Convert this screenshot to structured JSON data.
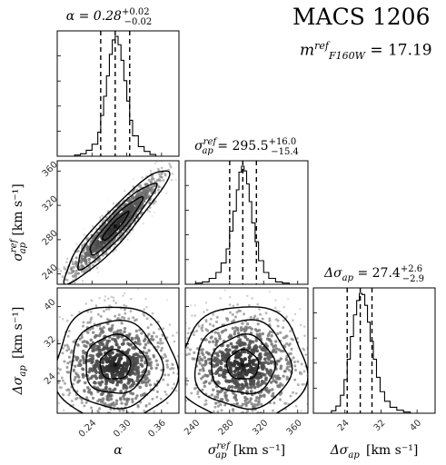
{
  "header": {
    "cluster_name": "MACS 1206",
    "mag_symbol": "m",
    "mag_sup": "ref",
    "mag_sub": "F160W",
    "mag_value": "= 17.19"
  },
  "chart_data": {
    "type": "corner",
    "parameters": [
      {
        "symbol": "α",
        "axis_label": "α",
        "unit": "",
        "title": "α = 0.28",
        "median": 0.28,
        "err_plus": "+0.02",
        "err_minus": "−0.02",
        "quantiles": [
          0.255,
          0.28,
          0.305
        ],
        "range": [
          0.18,
          0.39
        ],
        "ticks": [
          0.24,
          0.3,
          0.36
        ],
        "tick_labels": [
          "0.24",
          "0.30",
          "0.36"
        ]
      },
      {
        "symbol": "σ_ap^ref",
        "axis_label": "σ",
        "axis_sub": "ap",
        "axis_sup": "ref",
        "unit": "[km s⁻¹]",
        "title": "= 295.5",
        "title_symbol": "σ",
        "median": 295.5,
        "err_plus": "+16.0",
        "err_minus": "−15.4",
        "quantiles": [
          280.1,
          295.5,
          311.5
        ],
        "range": [
          228,
          372
        ],
        "ticks": [
          240,
          280,
          320,
          360
        ],
        "tick_labels": [
          "240",
          "280",
          "320",
          "360"
        ]
      },
      {
        "symbol": "Δσ_ap",
        "axis_label": "Δσ",
        "axis_sub": "ap",
        "unit": "[km s⁻¹]",
        "title": "= 27.4",
        "title_symbol": "Δσ",
        "median": 27.4,
        "err_plus": "+2.6",
        "err_minus": "−2.9",
        "quantiles": [
          24.5,
          27.4,
          30.0
        ],
        "range": [
          17,
          44
        ],
        "ticks": [
          24,
          32,
          40
        ],
        "tick_labels": [
          "24",
          "32",
          "40"
        ]
      }
    ],
    "histograms": [
      {
        "param": "α",
        "bin_edges": [
          0.21,
          0.22,
          0.23,
          0.24,
          0.25,
          0.255,
          0.26,
          0.265,
          0.27,
          0.275,
          0.28,
          0.285,
          0.29,
          0.295,
          0.3,
          0.305,
          0.31,
          0.32,
          0.33,
          0.34,
          0.35
        ],
        "counts": [
          0.01,
          0.02,
          0.05,
          0.1,
          0.2,
          0.34,
          0.5,
          0.67,
          0.85,
          0.97,
          1.0,
          0.93,
          0.8,
          0.63,
          0.46,
          0.3,
          0.17,
          0.08,
          0.04,
          0.015
        ]
      },
      {
        "param": "σ_ap^ref",
        "bin_edges": [
          240,
          248,
          256,
          264,
          270,
          276,
          280,
          284,
          288,
          291,
          294,
          297,
          300,
          303,
          306,
          310,
          314,
          320,
          326,
          334,
          342,
          350
        ],
        "counts": [
          0.01,
          0.02,
          0.05,
          0.1,
          0.18,
          0.3,
          0.45,
          0.62,
          0.8,
          0.95,
          1.0,
          0.96,
          0.85,
          0.7,
          0.52,
          0.36,
          0.2,
          0.1,
          0.05,
          0.02,
          0.01
        ]
      },
      {
        "param": "Δσ_ap",
        "bin_edges": [
          21,
          22,
          23,
          23.8,
          24.5,
          25.2,
          25.9,
          26.6,
          27.2,
          27.8,
          28.4,
          29.0,
          29.6,
          30.3,
          31.0,
          31.8,
          32.8,
          34,
          35.5,
          37,
          38.5
        ],
        "counts": [
          0.02,
          0.06,
          0.15,
          0.28,
          0.45,
          0.64,
          0.82,
          0.94,
          1.0,
          0.99,
          0.9,
          0.76,
          0.6,
          0.45,
          0.3,
          0.18,
          0.1,
          0.05,
          0.025,
          0.01
        ]
      }
    ],
    "scatter_2d": [
      {
        "x_param": "α",
        "y_param": "σ_ap^ref",
        "center": [
          0.28,
          295.5
        ],
        "spread": [
          0.03,
          22
        ],
        "correlation": 0.93,
        "contour_levels_sigma": [
          0.5,
          1.0,
          1.5,
          2.0
        ]
      },
      {
        "x_param": "α",
        "y_param": "Δσ_ap",
        "center": [
          0.28,
          27.4
        ],
        "spread": [
          0.035,
          4.2
        ],
        "correlation": 0.0,
        "contour_levels_sigma": [
          0.5,
          1.0,
          1.5,
          2.0
        ]
      },
      {
        "x_param": "σ_ap^ref",
        "y_param": "Δσ_ap",
        "center": [
          295.5,
          27.4
        ],
        "spread": [
          25,
          4.2
        ],
        "correlation": 0.0,
        "contour_levels_sigma": [
          0.5,
          1.0,
          1.5,
          2.0
        ]
      }
    ],
    "grid": false,
    "legend": "none"
  }
}
